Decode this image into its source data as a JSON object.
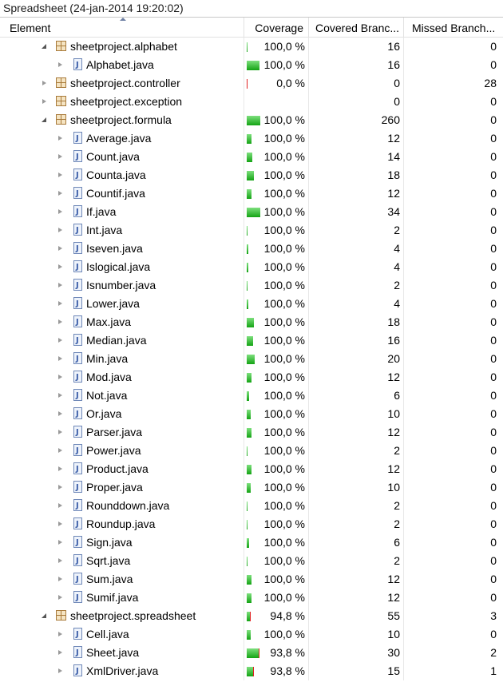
{
  "window": {
    "title": "Spreadsheet (24-jan-2014 19:20:02)"
  },
  "columns": {
    "element": "Element",
    "coverage": "Coverage",
    "covered": "Covered Branc...",
    "missed": "Missed Branch..."
  },
  "rows": [
    {
      "name": "sheetproject.alphabet",
      "type": "package",
      "level": 1,
      "expanded": true,
      "coverage": "100,0 %",
      "coverage_frac": 1.0,
      "covered": "16",
      "missed": "0",
      "bar_scale": 0.06
    },
    {
      "name": "Alphabet.java",
      "type": "java",
      "level": 2,
      "expanded": false,
      "coverage": "100,0 %",
      "coverage_frac": 1.0,
      "covered": "16",
      "missed": "0",
      "bar_scale": 0.9
    },
    {
      "name": "sheetproject.controller",
      "type": "package",
      "level": 1,
      "expanded": false,
      "coverage": "0,0 %",
      "coverage_frac": 0.0,
      "covered": "0",
      "missed": "28",
      "bar_scale": 0.05
    },
    {
      "name": "sheetproject.exception",
      "type": "package",
      "level": 1,
      "expanded": false,
      "coverage": "",
      "coverage_frac": null,
      "covered": "0",
      "missed": "0",
      "bar_scale": 0
    },
    {
      "name": "sheetproject.formula",
      "type": "package",
      "level": 1,
      "expanded": true,
      "coverage": "100,0 %",
      "coverage_frac": 1.0,
      "covered": "260",
      "missed": "0",
      "bar_scale": 0.95
    },
    {
      "name": "Average.java",
      "type": "java",
      "level": 2,
      "expanded": false,
      "coverage": "100,0 %",
      "coverage_frac": 1.0,
      "covered": "12",
      "missed": "0",
      "bar_scale": 0.33
    },
    {
      "name": "Count.java",
      "type": "java",
      "level": 2,
      "expanded": false,
      "coverage": "100,0 %",
      "coverage_frac": 1.0,
      "covered": "14",
      "missed": "0",
      "bar_scale": 0.39
    },
    {
      "name": "Counta.java",
      "type": "java",
      "level": 2,
      "expanded": false,
      "coverage": "100,0 %",
      "coverage_frac": 1.0,
      "covered": "18",
      "missed": "0",
      "bar_scale": 0.5
    },
    {
      "name": "Countif.java",
      "type": "java",
      "level": 2,
      "expanded": false,
      "coverage": "100,0 %",
      "coverage_frac": 1.0,
      "covered": "12",
      "missed": "0",
      "bar_scale": 0.33
    },
    {
      "name": "If.java",
      "type": "java",
      "level": 2,
      "expanded": false,
      "coverage": "100,0 %",
      "coverage_frac": 1.0,
      "covered": "34",
      "missed": "0",
      "bar_scale": 0.95
    },
    {
      "name": "Int.java",
      "type": "java",
      "level": 2,
      "expanded": false,
      "coverage": "100,0 %",
      "coverage_frac": 1.0,
      "covered": "2",
      "missed": "0",
      "bar_scale": 0.06
    },
    {
      "name": "Iseven.java",
      "type": "java",
      "level": 2,
      "expanded": false,
      "coverage": "100,0 %",
      "coverage_frac": 1.0,
      "covered": "4",
      "missed": "0",
      "bar_scale": 0.11
    },
    {
      "name": "Islogical.java",
      "type": "java",
      "level": 2,
      "expanded": false,
      "coverage": "100,0 %",
      "coverage_frac": 1.0,
      "covered": "4",
      "missed": "0",
      "bar_scale": 0.11
    },
    {
      "name": "Isnumber.java",
      "type": "java",
      "level": 2,
      "expanded": false,
      "coverage": "100,0 %",
      "coverage_frac": 1.0,
      "covered": "2",
      "missed": "0",
      "bar_scale": 0.06
    },
    {
      "name": "Lower.java",
      "type": "java",
      "level": 2,
      "expanded": false,
      "coverage": "100,0 %",
      "coverage_frac": 1.0,
      "covered": "4",
      "missed": "0",
      "bar_scale": 0.11
    },
    {
      "name": "Max.java",
      "type": "java",
      "level": 2,
      "expanded": false,
      "coverage": "100,0 %",
      "coverage_frac": 1.0,
      "covered": "18",
      "missed": "0",
      "bar_scale": 0.5
    },
    {
      "name": "Median.java",
      "type": "java",
      "level": 2,
      "expanded": false,
      "coverage": "100,0 %",
      "coverage_frac": 1.0,
      "covered": "16",
      "missed": "0",
      "bar_scale": 0.45
    },
    {
      "name": "Min.java",
      "type": "java",
      "level": 2,
      "expanded": false,
      "coverage": "100,0 %",
      "coverage_frac": 1.0,
      "covered": "20",
      "missed": "0",
      "bar_scale": 0.56
    },
    {
      "name": "Mod.java",
      "type": "java",
      "level": 2,
      "expanded": false,
      "coverage": "100,0 %",
      "coverage_frac": 1.0,
      "covered": "12",
      "missed": "0",
      "bar_scale": 0.33
    },
    {
      "name": "Not.java",
      "type": "java",
      "level": 2,
      "expanded": false,
      "coverage": "100,0 %",
      "coverage_frac": 1.0,
      "covered": "6",
      "missed": "0",
      "bar_scale": 0.17
    },
    {
      "name": "Or.java",
      "type": "java",
      "level": 2,
      "expanded": false,
      "coverage": "100,0 %",
      "coverage_frac": 1.0,
      "covered": "10",
      "missed": "0",
      "bar_scale": 0.28
    },
    {
      "name": "Parser.java",
      "type": "java",
      "level": 2,
      "expanded": false,
      "coverage": "100,0 %",
      "coverage_frac": 1.0,
      "covered": "12",
      "missed": "0",
      "bar_scale": 0.33
    },
    {
      "name": "Power.java",
      "type": "java",
      "level": 2,
      "expanded": false,
      "coverage": "100,0 %",
      "coverage_frac": 1.0,
      "covered": "2",
      "missed": "0",
      "bar_scale": 0.06
    },
    {
      "name": "Product.java",
      "type": "java",
      "level": 2,
      "expanded": false,
      "coverage": "100,0 %",
      "coverage_frac": 1.0,
      "covered": "12",
      "missed": "0",
      "bar_scale": 0.33
    },
    {
      "name": "Proper.java",
      "type": "java",
      "level": 2,
      "expanded": false,
      "coverage": "100,0 %",
      "coverage_frac": 1.0,
      "covered": "10",
      "missed": "0",
      "bar_scale": 0.28
    },
    {
      "name": "Rounddown.java",
      "type": "java",
      "level": 2,
      "expanded": false,
      "coverage": "100,0 %",
      "coverage_frac": 1.0,
      "covered": "2",
      "missed": "0",
      "bar_scale": 0.06
    },
    {
      "name": "Roundup.java",
      "type": "java",
      "level": 2,
      "expanded": false,
      "coverage": "100,0 %",
      "coverage_frac": 1.0,
      "covered": "2",
      "missed": "0",
      "bar_scale": 0.06
    },
    {
      "name": "Sign.java",
      "type": "java",
      "level": 2,
      "expanded": false,
      "coverage": "100,0 %",
      "coverage_frac": 1.0,
      "covered": "6",
      "missed": "0",
      "bar_scale": 0.17
    },
    {
      "name": "Sqrt.java",
      "type": "java",
      "level": 2,
      "expanded": false,
      "coverage": "100,0 %",
      "coverage_frac": 1.0,
      "covered": "2",
      "missed": "0",
      "bar_scale": 0.06
    },
    {
      "name": "Sum.java",
      "type": "java",
      "level": 2,
      "expanded": false,
      "coverage": "100,0 %",
      "coverage_frac": 1.0,
      "covered": "12",
      "missed": "0",
      "bar_scale": 0.33
    },
    {
      "name": "Sumif.java",
      "type": "java",
      "level": 2,
      "expanded": false,
      "coverage": "100,0 %",
      "coverage_frac": 1.0,
      "covered": "12",
      "missed": "0",
      "bar_scale": 0.33
    },
    {
      "name": "sheetproject.spreadsheet",
      "type": "package",
      "level": 1,
      "expanded": true,
      "coverage": "94,8 %",
      "coverage_frac": 0.948,
      "covered": "55",
      "missed": "3",
      "bar_scale": 0.2
    },
    {
      "name": "Cell.java",
      "type": "java",
      "level": 2,
      "expanded": false,
      "coverage": "100,0 %",
      "coverage_frac": 1.0,
      "covered": "10",
      "missed": "0",
      "bar_scale": 0.28
    },
    {
      "name": "Sheet.java",
      "type": "java",
      "level": 2,
      "expanded": false,
      "coverage": "93,8 %",
      "coverage_frac": 0.938,
      "covered": "30",
      "missed": "2",
      "bar_scale": 0.9
    },
    {
      "name": "XmlDriver.java",
      "type": "java",
      "level": 2,
      "expanded": false,
      "coverage": "93,8 %",
      "coverage_frac": 0.938,
      "covered": "15",
      "missed": "1",
      "bar_scale": 0.45
    }
  ]
}
